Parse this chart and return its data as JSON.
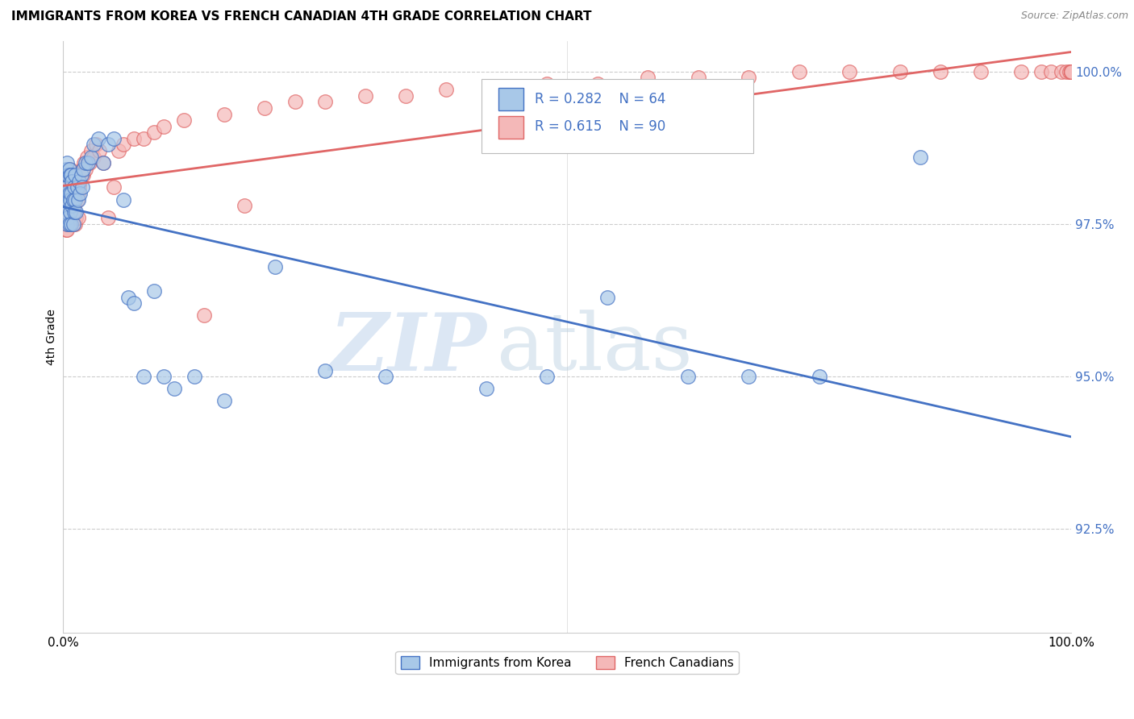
{
  "title": "IMMIGRANTS FROM KOREA VS FRENCH CANADIAN 4TH GRADE CORRELATION CHART",
  "source": "Source: ZipAtlas.com",
  "ylabel": "4th Grade",
  "xlim": [
    0.0,
    1.0
  ],
  "ylim": [
    0.908,
    1.005
  ],
  "ytick_labels": [
    "92.5%",
    "95.0%",
    "97.5%",
    "100.0%"
  ],
  "ytick_positions": [
    0.925,
    0.95,
    0.975,
    1.0
  ],
  "korea_color": "#a8c8e8",
  "french_color": "#f4b8b8",
  "korea_edge_color": "#4472c4",
  "french_edge_color": "#e06666",
  "r_korea": "R = 0.282",
  "n_korea": "N = 64",
  "r_french": "R = 0.615",
  "n_french": "N = 90",
  "watermark_zip": "ZIP",
  "watermark_atlas": "atlas",
  "korea_x": [
    0.001,
    0.002,
    0.002,
    0.003,
    0.003,
    0.003,
    0.004,
    0.004,
    0.004,
    0.005,
    0.005,
    0.005,
    0.006,
    0.006,
    0.006,
    0.007,
    0.007,
    0.007,
    0.008,
    0.008,
    0.008,
    0.009,
    0.009,
    0.01,
    0.01,
    0.011,
    0.011,
    0.012,
    0.012,
    0.013,
    0.014,
    0.015,
    0.016,
    0.017,
    0.018,
    0.019,
    0.02,
    0.022,
    0.025,
    0.028,
    0.03,
    0.035,
    0.04,
    0.045,
    0.05,
    0.06,
    0.065,
    0.07,
    0.08,
    0.09,
    0.1,
    0.11,
    0.13,
    0.16,
    0.21,
    0.26,
    0.32,
    0.42,
    0.48,
    0.54,
    0.62,
    0.68,
    0.75,
    0.85
  ],
  "korea_y": [
    0.98,
    0.983,
    0.978,
    0.98,
    0.984,
    0.977,
    0.981,
    0.985,
    0.975,
    0.979,
    0.983,
    0.976,
    0.98,
    0.984,
    0.975,
    0.979,
    0.983,
    0.977,
    0.98,
    0.975,
    0.983,
    0.978,
    0.982,
    0.979,
    0.975,
    0.981,
    0.977,
    0.979,
    0.983,
    0.977,
    0.981,
    0.979,
    0.982,
    0.98,
    0.983,
    0.981,
    0.984,
    0.985,
    0.985,
    0.986,
    0.988,
    0.989,
    0.985,
    0.988,
    0.989,
    0.979,
    0.963,
    0.962,
    0.95,
    0.964,
    0.95,
    0.948,
    0.95,
    0.946,
    0.968,
    0.951,
    0.95,
    0.948,
    0.95,
    0.963,
    0.95,
    0.95,
    0.95,
    0.986
  ],
  "french_x": [
    0.001,
    0.002,
    0.002,
    0.003,
    0.003,
    0.003,
    0.004,
    0.004,
    0.004,
    0.005,
    0.005,
    0.005,
    0.006,
    0.006,
    0.007,
    0.007,
    0.007,
    0.008,
    0.008,
    0.008,
    0.009,
    0.009,
    0.009,
    0.01,
    0.01,
    0.01,
    0.011,
    0.011,
    0.012,
    0.012,
    0.013,
    0.013,
    0.014,
    0.014,
    0.015,
    0.015,
    0.016,
    0.017,
    0.018,
    0.019,
    0.02,
    0.021,
    0.022,
    0.024,
    0.026,
    0.028,
    0.03,
    0.033,
    0.036,
    0.04,
    0.045,
    0.05,
    0.055,
    0.06,
    0.07,
    0.08,
    0.09,
    0.1,
    0.12,
    0.14,
    0.16,
    0.18,
    0.2,
    0.23,
    0.26,
    0.3,
    0.34,
    0.38,
    0.43,
    0.48,
    0.53,
    0.58,
    0.63,
    0.68,
    0.73,
    0.78,
    0.83,
    0.87,
    0.91,
    0.95,
    0.97,
    0.98,
    0.99,
    0.995,
    0.998,
    1.0,
    1.0,
    1.0,
    1.0,
    1.0
  ],
  "french_y": [
    0.977,
    0.979,
    0.975,
    0.977,
    0.981,
    0.974,
    0.978,
    0.982,
    0.974,
    0.978,
    0.982,
    0.975,
    0.979,
    0.983,
    0.976,
    0.98,
    0.984,
    0.977,
    0.981,
    0.975,
    0.978,
    0.982,
    0.976,
    0.979,
    0.975,
    0.983,
    0.978,
    0.982,
    0.979,
    0.975,
    0.98,
    0.976,
    0.979,
    0.983,
    0.98,
    0.976,
    0.981,
    0.982,
    0.983,
    0.984,
    0.983,
    0.985,
    0.984,
    0.986,
    0.985,
    0.987,
    0.986,
    0.988,
    0.987,
    0.985,
    0.976,
    0.981,
    0.987,
    0.988,
    0.989,
    0.989,
    0.99,
    0.991,
    0.992,
    0.96,
    0.993,
    0.978,
    0.994,
    0.995,
    0.995,
    0.996,
    0.996,
    0.997,
    0.997,
    0.998,
    0.998,
    0.999,
    0.999,
    0.999,
    1.0,
    1.0,
    1.0,
    1.0,
    1.0,
    1.0,
    1.0,
    1.0,
    1.0,
    1.0,
    1.0,
    1.0,
    1.0,
    1.0,
    1.0,
    1.0
  ]
}
